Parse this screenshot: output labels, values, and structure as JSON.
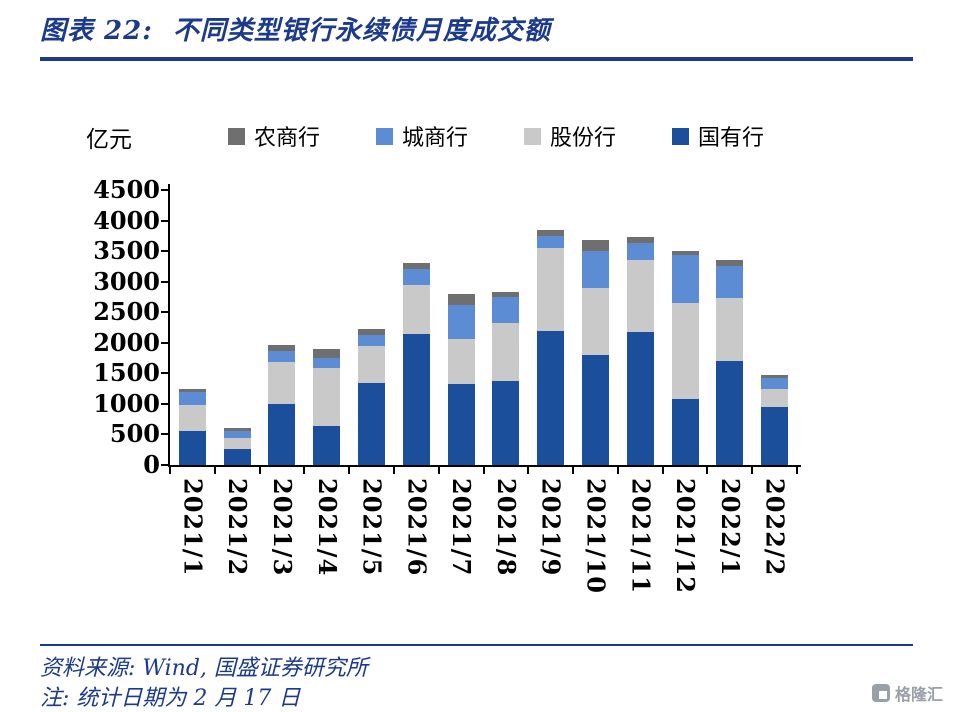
{
  "header": {
    "title": "图表 22:  不同类型银行永续债月度成交额"
  },
  "footer": {
    "source": "资料来源: Wind, 国盛证券研究所",
    "note": "注: 统计日期为 2 月 17 日"
  },
  "logo": {
    "text": "格隆汇"
  },
  "colors": {
    "accent_blue": "#1b3a8c",
    "axis_black": "#000000"
  },
  "chart_data": {
    "type": "bar",
    "subtype": "stacked",
    "title": "不同类型银行永续债月度成交额",
    "unit_label": "亿元",
    "xlabel": "",
    "ylabel": "亿元",
    "ylim": [
      0,
      4500
    ],
    "yticks": [
      0,
      500,
      1000,
      1500,
      2000,
      2500,
      3000,
      3500,
      4000,
      4500
    ],
    "grid": false,
    "legend_position": "top",
    "legend_order": [
      "农商行",
      "城商行",
      "股份行",
      "国有行"
    ],
    "categories": [
      "2021/1",
      "2021/2",
      "2021/3",
      "2021/4",
      "2021/5",
      "2021/6",
      "2021/7",
      "2021/8",
      "2021/9",
      "2021/10",
      "2021/11",
      "2021/12",
      "2022/1",
      "2022/2"
    ],
    "series": [
      {
        "name": "国有行",
        "color": "#1b4e9b",
        "values": [
          550,
          270,
          1000,
          640,
          1350,
          2150,
          1330,
          1380,
          2200,
          1800,
          2170,
          1080,
          1700,
          950
        ]
      },
      {
        "name": "股份行",
        "color": "#c9c9c9",
        "values": [
          440,
          180,
          690,
          950,
          600,
          800,
          740,
          950,
          1350,
          1100,
          1180,
          1570,
          1030,
          300
        ]
      },
      {
        "name": "城商行",
        "color": "#5b8cd4",
        "values": [
          210,
          100,
          180,
          160,
          175,
          250,
          550,
          420,
          200,
          600,
          280,
          780,
          520,
          175
        ]
      },
      {
        "name": "农商行",
        "color": "#6f6f6f",
        "values": [
          50,
          60,
          100,
          150,
          100,
          100,
          180,
          80,
          100,
          175,
          100,
          70,
          100,
          50
        ]
      }
    ],
    "totals": [
      1250,
      610,
      1970,
      1900,
      2225,
      3300,
      2800,
      2830,
      3850,
      3675,
      3730,
      3500,
      3350,
      1475
    ]
  }
}
